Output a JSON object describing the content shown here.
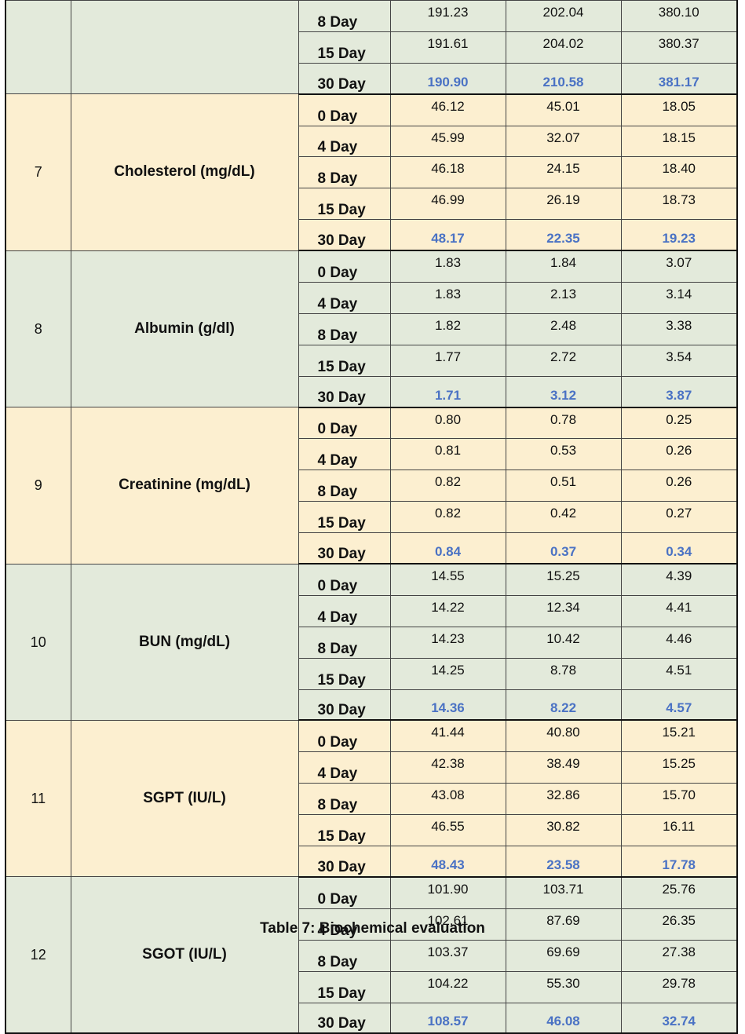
{
  "table": {
    "groups": [
      {
        "sno": "",
        "parameter": "",
        "color": "#e3eadb",
        "rows": [
          {
            "day": "8 Day",
            "values": [
              "191.23",
              "202.04",
              "380.10"
            ]
          },
          {
            "day": "15 Day",
            "values": [
              "191.61",
              "204.02",
              "380.37"
            ]
          },
          {
            "day": "30 Day",
            "values": [
              "190.90",
              "210.58",
              "381.17"
            ]
          }
        ]
      },
      {
        "sno": "7",
        "parameter": "Cholesterol (mg/dL)",
        "color": "#fcefd0",
        "rows": [
          {
            "day": "0 Day",
            "values": [
              "46.12",
              "45.01",
              "18.05"
            ]
          },
          {
            "day": "4 Day",
            "values": [
              "45.99",
              "32.07",
              "18.15"
            ]
          },
          {
            "day": "8 Day",
            "values": [
              "46.18",
              "24.15",
              "18.40"
            ]
          },
          {
            "day": "15 Day",
            "values": [
              "46.99",
              "26.19",
              "18.73"
            ]
          },
          {
            "day": "30 Day",
            "values": [
              "48.17",
              "22.35",
              "19.23"
            ]
          }
        ]
      },
      {
        "sno": "8",
        "parameter": "Albumin (g/dl)",
        "color": "#e3eadb",
        "rows": [
          {
            "day": "0 Day",
            "values": [
              "1.83",
              "1.84",
              "3.07"
            ]
          },
          {
            "day": "4 Day",
            "values": [
              "1.83",
              "2.13",
              "3.14"
            ]
          },
          {
            "day": "8 Day",
            "values": [
              "1.82",
              "2.48",
              "3.38"
            ]
          },
          {
            "day": "15 Day",
            "values": [
              "1.77",
              "2.72",
              "3.54"
            ]
          },
          {
            "day": "30 Day",
            "values": [
              "1.71",
              "3.12",
              "3.87"
            ]
          }
        ]
      },
      {
        "sno": "9",
        "parameter": "Creatinine (mg/dL)",
        "color": "#fcefd0",
        "rows": [
          {
            "day": "0 Day",
            "values": [
              "0.80",
              "0.78",
              "0.25"
            ]
          },
          {
            "day": "4 Day",
            "values": [
              "0.81",
              "0.53",
              "0.26"
            ]
          },
          {
            "day": "8 Day",
            "values": [
              "0.82",
              "0.51",
              "0.26"
            ]
          },
          {
            "day": "15 Day",
            "values": [
              "0.82",
              "0.42",
              "0.27"
            ]
          },
          {
            "day": "30 Day",
            "values": [
              "0.84",
              "0.37",
              "0.34"
            ]
          }
        ]
      },
      {
        "sno": "10",
        "parameter": "BUN (mg/dL)",
        "color": "#e3eadb",
        "rows": [
          {
            "day": "0 Day",
            "values": [
              "14.55",
              "15.25",
              "4.39"
            ]
          },
          {
            "day": "4 Day",
            "values": [
              "14.22",
              "12.34",
              "4.41"
            ]
          },
          {
            "day": "8 Day",
            "values": [
              "14.23",
              "10.42",
              "4.46"
            ]
          },
          {
            "day": "15 Day",
            "values": [
              "14.25",
              "8.78",
              "4.51"
            ]
          },
          {
            "day": "30 Day",
            "values": [
              "14.36",
              "8.22",
              "4.57"
            ]
          }
        ]
      },
      {
        "sno": "11",
        "parameter": "SGPT (IU/L)",
        "color": "#fcefd0",
        "rows": [
          {
            "day": "0 Day",
            "values": [
              "41.44",
              "40.80",
              "15.21"
            ]
          },
          {
            "day": "4 Day",
            "values": [
              "42.38",
              "38.49",
              "15.25"
            ]
          },
          {
            "day": "8 Day",
            "values": [
              "43.08",
              "32.86",
              "15.70"
            ]
          },
          {
            "day": "15 Day",
            "values": [
              "46.55",
              "30.82",
              "16.11"
            ]
          },
          {
            "day": "30 Day",
            "values": [
              "48.43",
              "23.58",
              "17.78"
            ]
          }
        ]
      },
      {
        "sno": "12",
        "parameter": "SGOT (IU/L)",
        "color": "#e3eadb",
        "rows": [
          {
            "day": "0 Day",
            "values": [
              "101.90",
              "103.71",
              "25.76"
            ]
          },
          {
            "day": "4 Day",
            "values": [
              "102.61",
              "87.69",
              "26.35"
            ]
          },
          {
            "day": "8 Day",
            "values": [
              "103.37",
              "69.69",
              "27.38"
            ]
          },
          {
            "day": "15 Day",
            "values": [
              "104.22",
              "55.30",
              "29.78"
            ]
          },
          {
            "day": "30 Day",
            "values": [
              "108.57",
              "46.08",
              "32.74"
            ]
          }
        ]
      }
    ],
    "highlight_color": "#4a72c4"
  },
  "caption": "Table 7: Biochemical evaluation"
}
